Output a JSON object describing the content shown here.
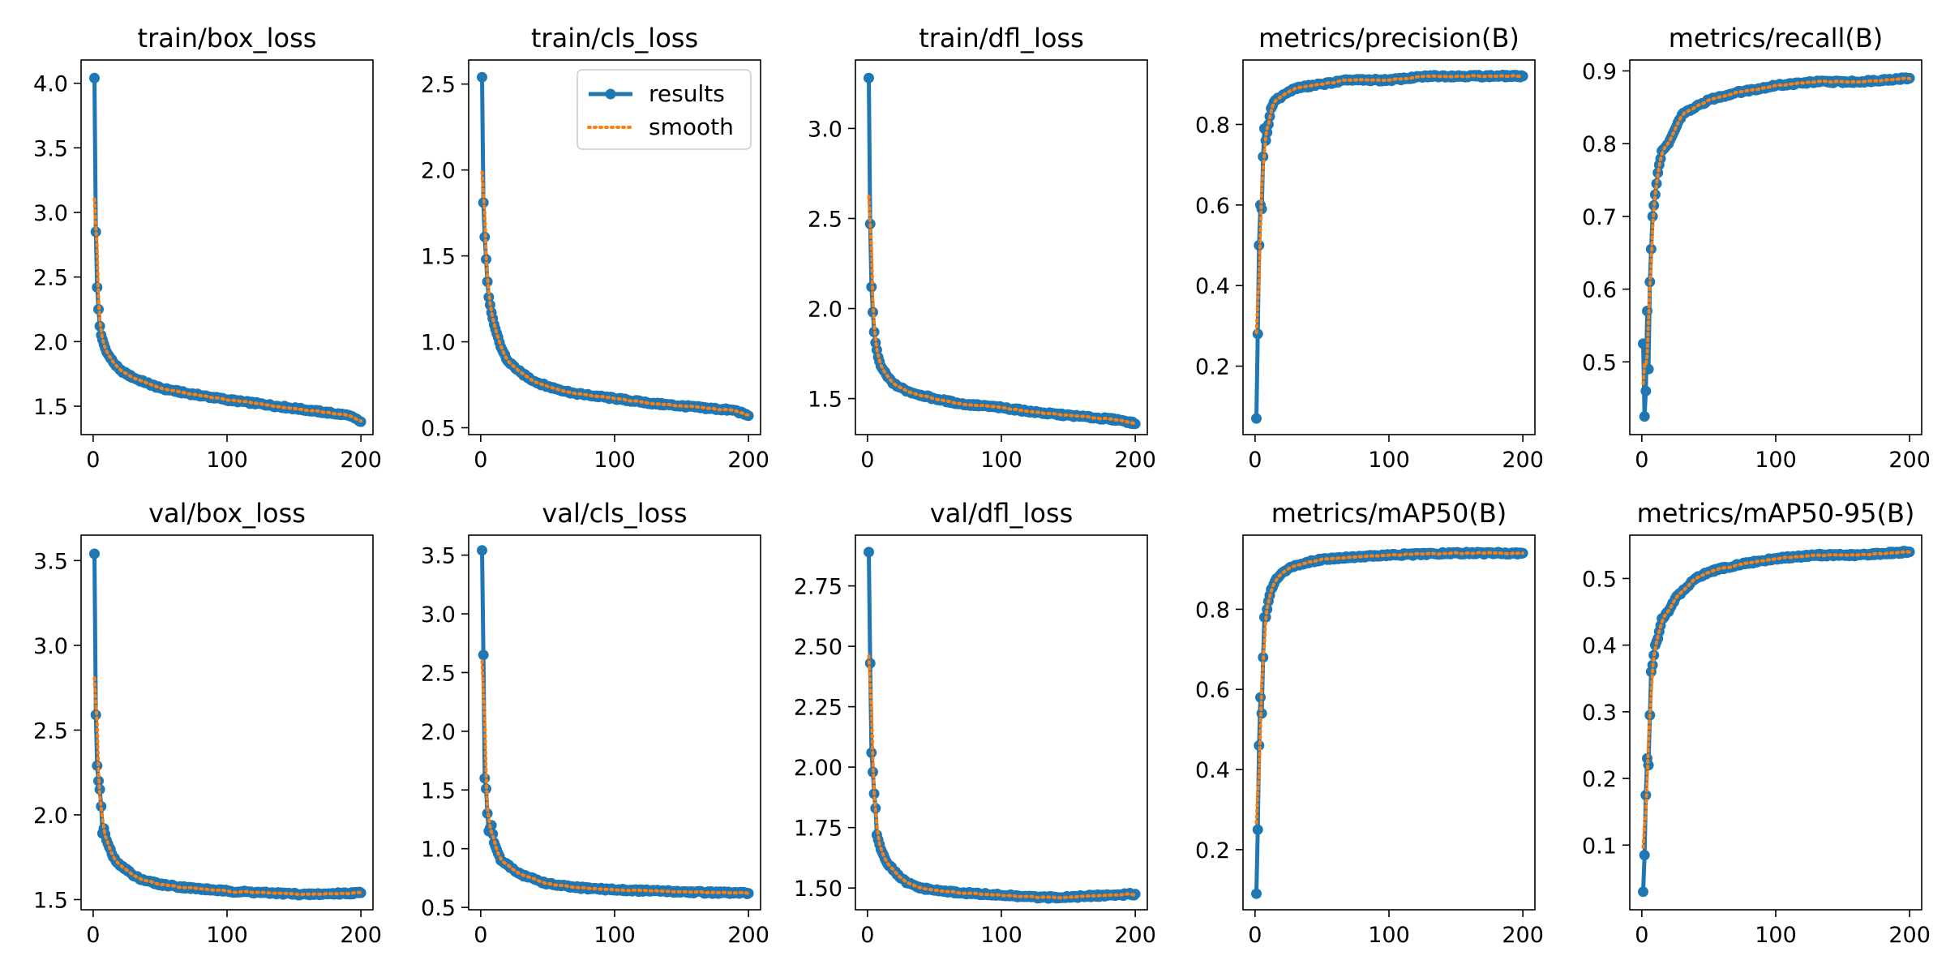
{
  "colors": {
    "results": "#1f77b4",
    "smooth": "#ff7f0e",
    "axis": "#000000",
    "background": "#ffffff"
  },
  "legend": {
    "items": [
      "results",
      "smooth"
    ],
    "placement": "top-right",
    "panel_index": 1
  },
  "chart_data": [
    {
      "type": "line",
      "title": "train/box_loss",
      "xlim": [
        -9,
        209
      ],
      "ylim": [
        1.28,
        4.18
      ],
      "xticks": [
        0,
        100,
        200
      ],
      "yticks": [
        1.5,
        2.0,
        2.5,
        3.0,
        3.5,
        4.0
      ],
      "keypoints": [
        [
          1,
          4.04
        ],
        [
          2,
          2.85
        ],
        [
          3,
          2.42
        ],
        [
          4,
          2.25
        ],
        [
          5,
          2.12
        ],
        [
          6,
          2.05
        ],
        [
          8,
          1.98
        ],
        [
          10,
          1.92
        ],
        [
          15,
          1.84
        ],
        [
          20,
          1.78
        ],
        [
          30,
          1.72
        ],
        [
          40,
          1.68
        ],
        [
          50,
          1.64
        ],
        [
          70,
          1.6
        ],
        [
          100,
          1.55
        ],
        [
          130,
          1.51
        ],
        [
          160,
          1.47
        ],
        [
          190,
          1.43
        ],
        [
          200,
          1.38
        ]
      ]
    },
    {
      "type": "line",
      "title": "train/cls_loss",
      "xlim": [
        -9,
        209
      ],
      "ylim": [
        0.46,
        2.64
      ],
      "xticks": [
        0,
        100,
        200
      ],
      "yticks": [
        0.5,
        1.0,
        1.5,
        2.0,
        2.5
      ],
      "keypoints": [
        [
          1,
          2.54
        ],
        [
          2,
          1.81
        ],
        [
          3,
          1.61
        ],
        [
          4,
          1.48
        ],
        [
          5,
          1.35
        ],
        [
          6,
          1.26
        ],
        [
          8,
          1.17
        ],
        [
          10,
          1.1
        ],
        [
          15,
          0.97
        ],
        [
          20,
          0.89
        ],
        [
          30,
          0.82
        ],
        [
          40,
          0.77
        ],
        [
          50,
          0.74
        ],
        [
          70,
          0.7
        ],
        [
          100,
          0.67
        ],
        [
          130,
          0.64
        ],
        [
          160,
          0.62
        ],
        [
          190,
          0.6
        ],
        [
          200,
          0.57
        ]
      ]
    },
    {
      "type": "line",
      "title": "train/dfl_loss",
      "xlim": [
        -9,
        209
      ],
      "ylim": [
        1.3,
        3.38
      ],
      "xticks": [
        0,
        100,
        200
      ],
      "yticks": [
        1.5,
        2.0,
        2.5,
        3.0
      ],
      "keypoints": [
        [
          1,
          3.28
        ],
        [
          2,
          2.47
        ],
        [
          3,
          2.12
        ],
        [
          4,
          1.98
        ],
        [
          5,
          1.87
        ],
        [
          6,
          1.81
        ],
        [
          8,
          1.73
        ],
        [
          10,
          1.68
        ],
        [
          15,
          1.62
        ],
        [
          20,
          1.58
        ],
        [
          30,
          1.54
        ],
        [
          40,
          1.52
        ],
        [
          50,
          1.5
        ],
        [
          70,
          1.47
        ],
        [
          100,
          1.45
        ],
        [
          130,
          1.42
        ],
        [
          160,
          1.4
        ],
        [
          190,
          1.38
        ],
        [
          200,
          1.36
        ]
      ]
    },
    {
      "type": "line",
      "title": "metrics/precision(B)",
      "xlim": [
        -9,
        209
      ],
      "ylim": [
        0.03,
        0.96
      ],
      "xticks": [
        0,
        100,
        200
      ],
      "yticks": [
        0.2,
        0.4,
        0.6,
        0.8
      ],
      "keypoints": [
        [
          1,
          0.07
        ],
        [
          2,
          0.28
        ],
        [
          3,
          0.5
        ],
        [
          4,
          0.6
        ],
        [
          5,
          0.59
        ],
        [
          6,
          0.72
        ],
        [
          7,
          0.79
        ],
        [
          8,
          0.76
        ],
        [
          10,
          0.8
        ],
        [
          12,
          0.84
        ],
        [
          15,
          0.86
        ],
        [
          20,
          0.87
        ],
        [
          30,
          0.89
        ],
        [
          50,
          0.9
        ],
        [
          70,
          0.91
        ],
        [
          100,
          0.91
        ],
        [
          130,
          0.92
        ],
        [
          160,
          0.92
        ],
        [
          200,
          0.92
        ]
      ]
    },
    {
      "type": "line",
      "title": "metrics/recall(B)",
      "xlim": [
        -9,
        209
      ],
      "ylim": [
        0.4,
        0.915
      ],
      "xticks": [
        0,
        100,
        200
      ],
      "yticks": [
        0.5,
        0.6,
        0.7,
        0.8,
        0.9
      ],
      "keypoints": [
        [
          1,
          0.525
        ],
        [
          2,
          0.425
        ],
        [
          3,
          0.46
        ],
        [
          4,
          0.57
        ],
        [
          5,
          0.49
        ],
        [
          6,
          0.61
        ],
        [
          8,
          0.7
        ],
        [
          10,
          0.73
        ],
        [
          12,
          0.76
        ],
        [
          15,
          0.79
        ],
        [
          20,
          0.8
        ],
        [
          25,
          0.82
        ],
        [
          30,
          0.84
        ],
        [
          40,
          0.85
        ],
        [
          50,
          0.86
        ],
        [
          70,
          0.87
        ],
        [
          100,
          0.88
        ],
        [
          130,
          0.885
        ],
        [
          160,
          0.885
        ],
        [
          200,
          0.89
        ]
      ]
    },
    {
      "type": "line",
      "title": "val/box_loss",
      "xlim": [
        -9,
        209
      ],
      "ylim": [
        1.44,
        3.65
      ],
      "xticks": [
        0,
        100,
        200
      ],
      "yticks": [
        1.5,
        2.0,
        2.5,
        3.0,
        3.5
      ],
      "keypoints": [
        [
          1,
          3.54
        ],
        [
          2,
          2.59
        ],
        [
          3,
          2.29
        ],
        [
          4,
          2.2
        ],
        [
          5,
          2.15
        ],
        [
          6,
          2.05
        ],
        [
          7,
          1.89
        ],
        [
          8,
          1.92
        ],
        [
          10,
          1.85
        ],
        [
          15,
          1.75
        ],
        [
          20,
          1.7
        ],
        [
          25,
          1.68
        ],
        [
          30,
          1.64
        ],
        [
          40,
          1.61
        ],
        [
          50,
          1.59
        ],
        [
          70,
          1.57
        ],
        [
          100,
          1.55
        ],
        [
          130,
          1.54
        ],
        [
          160,
          1.53
        ],
        [
          200,
          1.54
        ]
      ]
    },
    {
      "type": "line",
      "title": "val/cls_loss",
      "xlim": [
        -9,
        209
      ],
      "ylim": [
        0.48,
        3.67
      ],
      "xticks": [
        0,
        100,
        200
      ],
      "yticks": [
        0.5,
        1.0,
        1.5,
        2.0,
        2.5,
        3.0,
        3.5
      ],
      "keypoints": [
        [
          1,
          3.54
        ],
        [
          2,
          2.65
        ],
        [
          3,
          1.6
        ],
        [
          4,
          1.51
        ],
        [
          5,
          1.3
        ],
        [
          6,
          1.15
        ],
        [
          8,
          1.2
        ],
        [
          10,
          1.05
        ],
        [
          15,
          0.9
        ],
        [
          20,
          0.86
        ],
        [
          30,
          0.78
        ],
        [
          40,
          0.74
        ],
        [
          50,
          0.7
        ],
        [
          70,
          0.67
        ],
        [
          100,
          0.65
        ],
        [
          130,
          0.64
        ],
        [
          160,
          0.63
        ],
        [
          200,
          0.62
        ]
      ]
    },
    {
      "type": "line",
      "title": "val/dfl_loss",
      "xlim": [
        -9,
        209
      ],
      "ylim": [
        1.41,
        2.96
      ],
      "xticks": [
        0,
        100,
        200
      ],
      "yticks": [
        1.5,
        1.75,
        2.0,
        2.25,
        2.5,
        2.75
      ],
      "keypoints": [
        [
          1,
          2.89
        ],
        [
          2,
          2.43
        ],
        [
          3,
          2.06
        ],
        [
          4,
          1.98
        ],
        [
          5,
          1.89
        ],
        [
          6,
          1.83
        ],
        [
          7,
          1.72
        ],
        [
          8,
          1.7
        ],
        [
          10,
          1.66
        ],
        [
          15,
          1.6
        ],
        [
          20,
          1.57
        ],
        [
          25,
          1.54
        ],
        [
          30,
          1.52
        ],
        [
          40,
          1.5
        ],
        [
          50,
          1.49
        ],
        [
          70,
          1.48
        ],
        [
          100,
          1.47
        ],
        [
          130,
          1.46
        ],
        [
          160,
          1.465
        ],
        [
          200,
          1.475
        ]
      ]
    },
    {
      "type": "line",
      "title": "metrics/mAP50(B)",
      "xlim": [
        -9,
        209
      ],
      "ylim": [
        0.05,
        0.985
      ],
      "xticks": [
        0,
        100,
        200
      ],
      "yticks": [
        0.2,
        0.4,
        0.6,
        0.8
      ],
      "keypoints": [
        [
          1,
          0.09
        ],
        [
          2,
          0.25
        ],
        [
          3,
          0.46
        ],
        [
          4,
          0.58
        ],
        [
          5,
          0.54
        ],
        [
          6,
          0.68
        ],
        [
          7,
          0.78
        ],
        [
          8,
          0.78
        ],
        [
          10,
          0.82
        ],
        [
          12,
          0.85
        ],
        [
          15,
          0.87
        ],
        [
          20,
          0.89
        ],
        [
          30,
          0.91
        ],
        [
          50,
          0.925
        ],
        [
          70,
          0.93
        ],
        [
          100,
          0.935
        ],
        [
          150,
          0.94
        ],
        [
          200,
          0.94
        ]
      ]
    },
    {
      "type": "line",
      "title": "metrics/mAP50-95(B)",
      "xlim": [
        -9,
        209
      ],
      "ylim": [
        0.003,
        0.565
      ],
      "xticks": [
        0,
        100,
        200
      ],
      "yticks": [
        0.1,
        0.2,
        0.3,
        0.4,
        0.5
      ],
      "keypoints": [
        [
          1,
          0.03
        ],
        [
          2,
          0.085
        ],
        [
          3,
          0.175
        ],
        [
          4,
          0.23
        ],
        [
          5,
          0.22
        ],
        [
          6,
          0.295
        ],
        [
          7,
          0.36
        ],
        [
          8,
          0.37
        ],
        [
          10,
          0.4
        ],
        [
          12,
          0.41
        ],
        [
          15,
          0.44
        ],
        [
          20,
          0.45
        ],
        [
          25,
          0.47
        ],
        [
          30,
          0.48
        ],
        [
          40,
          0.5
        ],
        [
          50,
          0.51
        ],
        [
          70,
          0.52
        ],
        [
          100,
          0.53
        ],
        [
          130,
          0.535
        ],
        [
          160,
          0.535
        ],
        [
          200,
          0.54
        ]
      ]
    }
  ]
}
